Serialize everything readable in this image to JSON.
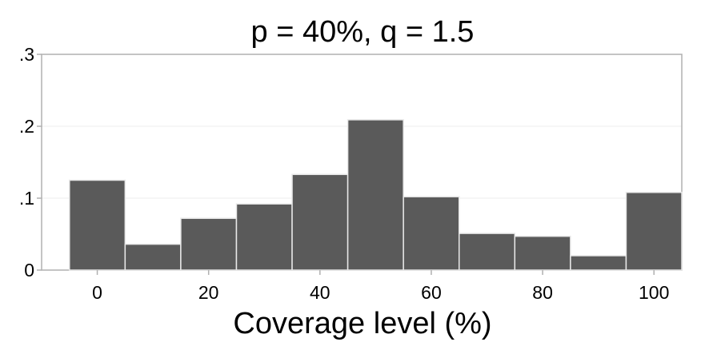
{
  "chart_data": {
    "type": "bar",
    "title": "p = 40%, q = 1.5",
    "xlabel": "Coverage level (%)",
    "ylabel": "",
    "x_bins": [
      {
        "center": 0,
        "width": 10,
        "value": 0.125
      },
      {
        "center": 10,
        "width": 10,
        "value": 0.036
      },
      {
        "center": 20,
        "width": 10,
        "value": 0.072
      },
      {
        "center": 30,
        "width": 10,
        "value": 0.092
      },
      {
        "center": 40,
        "width": 10,
        "value": 0.133
      },
      {
        "center": 50,
        "width": 10,
        "value": 0.209
      },
      {
        "center": 60,
        "width": 10,
        "value": 0.102
      },
      {
        "center": 70,
        "width": 10,
        "value": 0.051
      },
      {
        "center": 80,
        "width": 10,
        "value": 0.047
      },
      {
        "center": 90,
        "width": 10,
        "value": 0.02
      },
      {
        "center": 100,
        "width": 10,
        "value": 0.108
      }
    ],
    "xlim": [
      -10,
      105
    ],
    "ylim": [
      0,
      0.3
    ],
    "x_ticks": [
      0,
      20,
      40,
      60,
      80,
      100
    ],
    "x_tick_labels": [
      "0",
      "20",
      "40",
      "60",
      "80",
      "100"
    ],
    "y_ticks": [
      0,
      0.1,
      0.2,
      0.3
    ],
    "y_tick_labels": [
      "0",
      ".1",
      ".2",
      ".3"
    ],
    "grid": true,
    "colors": {
      "bar_fill": "#5a5a5a",
      "bar_edge": "#e8e8e8",
      "frame": "#b0b0b0",
      "grid": "#ececec"
    }
  }
}
